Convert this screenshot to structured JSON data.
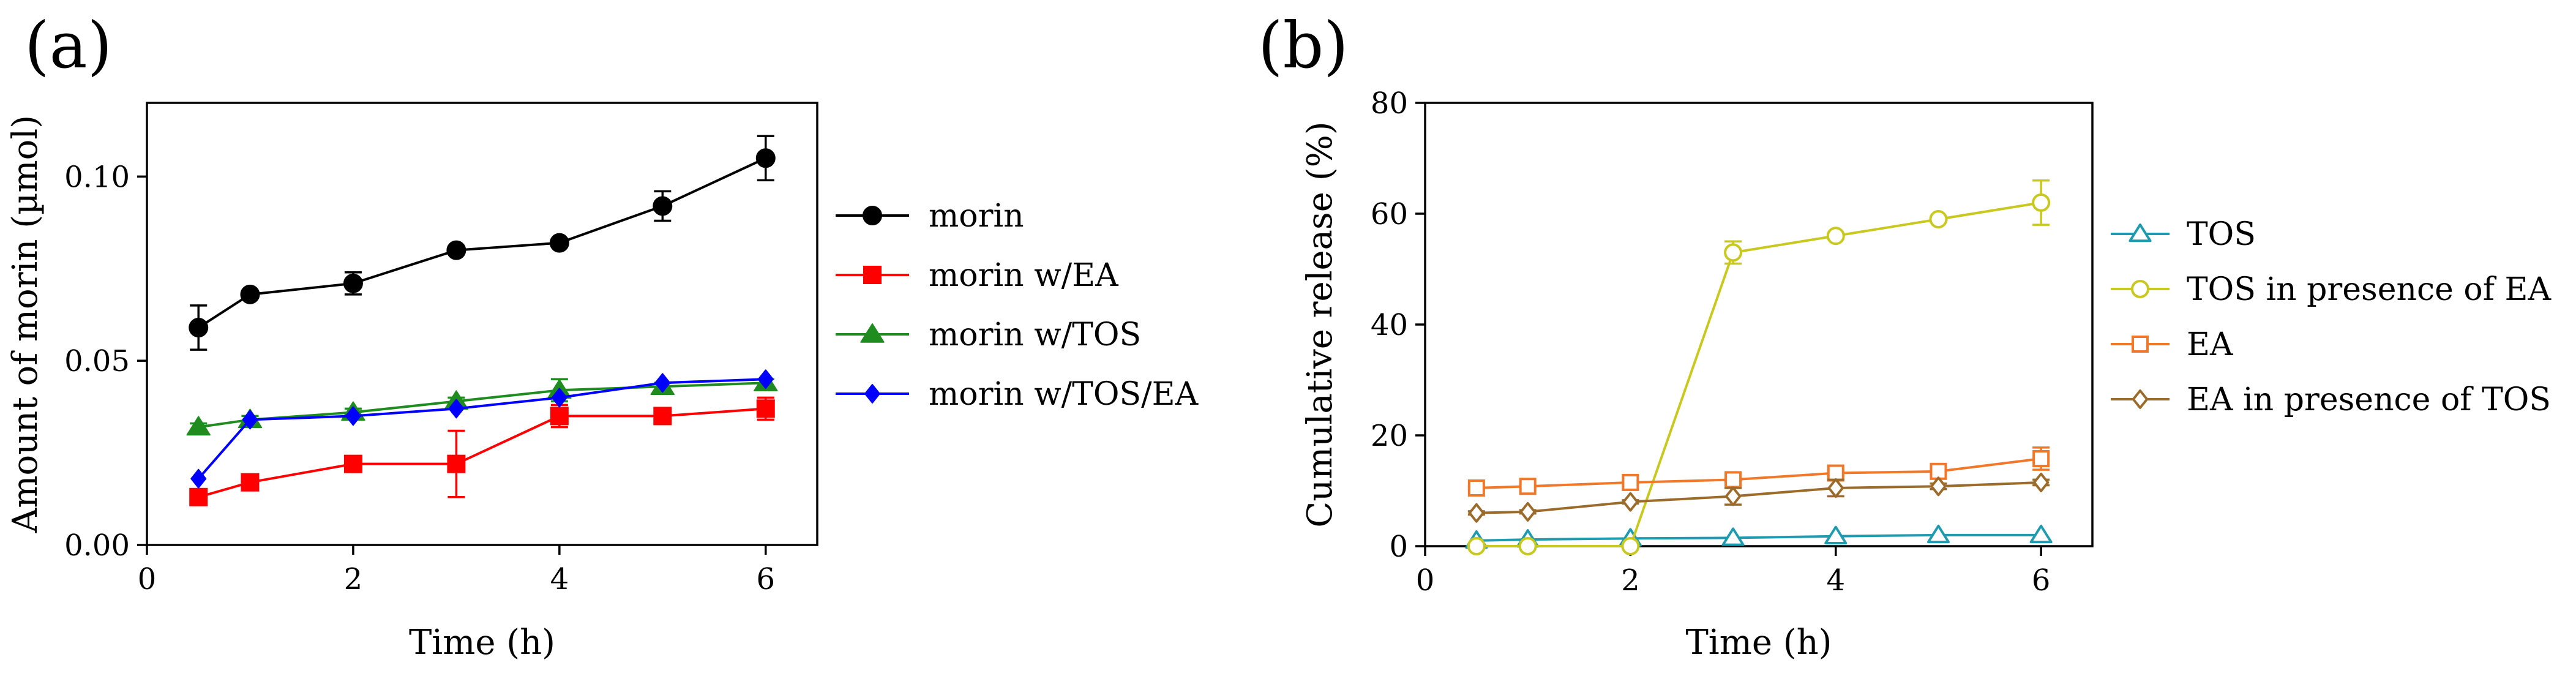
{
  "panel_labels": {
    "a": "(a)",
    "b": "(b)"
  },
  "chart_data": [
    {
      "type": "line",
      "panel": "(a)",
      "xlabel": "Time (h)",
      "ylabel": "Amount of morin (µmol)",
      "xlim": [
        0,
        6.5
      ],
      "ylim": [
        0,
        0.12
      ],
      "xticks": [
        0,
        2,
        4,
        6
      ],
      "yticks": [
        0.0,
        0.05,
        0.1
      ],
      "ytick_labels": [
        "0.00",
        "0.05",
        "0.10"
      ],
      "legend_position": "right",
      "series": [
        {
          "name": "morin",
          "color": "#000000",
          "marker": "circle-filled",
          "x": [
            0.5,
            1,
            2,
            3,
            4,
            5,
            6
          ],
          "y": [
            0.059,
            0.068,
            0.071,
            0.08,
            0.082,
            0.092,
            0.105
          ],
          "err": [
            0.006,
            0.001,
            0.003,
            0.001,
            0.001,
            0.004,
            0.006
          ]
        },
        {
          "name": "morin w/EA",
          "color": "#ff0000",
          "marker": "square-filled",
          "x": [
            0.5,
            1,
            2,
            3,
            4,
            5,
            6
          ],
          "y": [
            0.013,
            0.017,
            0.022,
            0.022,
            0.035,
            0.035,
            0.037
          ],
          "err": [
            0.001,
            0.002,
            0.002,
            0.009,
            0.003,
            0.001,
            0.003
          ]
        },
        {
          "name": "morin w/TOS",
          "color": "#1e8c1e",
          "marker": "triangle-filled",
          "x": [
            0.5,
            1,
            2,
            3,
            4,
            5,
            6
          ],
          "y": [
            0.032,
            0.034,
            0.036,
            0.039,
            0.042,
            0.043,
            0.044
          ],
          "err": [
            0.001,
            0.001,
            0.001,
            0.001,
            0.003,
            0.001,
            0.001
          ]
        },
        {
          "name": "morin w/TOS/EA",
          "color": "#0000ff",
          "marker": "diamond-filled",
          "x": [
            0.5,
            1,
            2,
            3,
            4,
            5,
            6
          ],
          "y": [
            0.018,
            0.034,
            0.035,
            0.037,
            0.04,
            0.044,
            0.045
          ],
          "err": [
            0,
            0,
            0,
            0,
            0,
            0,
            0
          ]
        }
      ]
    },
    {
      "type": "line",
      "panel": "(b)",
      "xlabel": "Time (h)",
      "ylabel": "Cumulative release (%)",
      "xlim": [
        0,
        6.5
      ],
      "ylim": [
        0,
        80
      ],
      "xticks": [
        0,
        2,
        4,
        6
      ],
      "yticks": [
        0,
        20,
        40,
        60,
        80
      ],
      "ytick_labels": [
        "0",
        "20",
        "40",
        "60",
        "80"
      ],
      "legend_position": "right",
      "series": [
        {
          "name": "TOS",
          "color": "#1f9bb0",
          "marker": "triangle-open",
          "x": [
            0.5,
            1,
            2,
            3,
            4,
            5,
            6
          ],
          "y": [
            1.0,
            1.2,
            1.4,
            1.5,
            1.8,
            2.0,
            2.0
          ],
          "err": [
            0,
            0,
            0,
            0,
            0,
            0,
            0
          ]
        },
        {
          "name": "TOS in presence of EA",
          "color": "#c8c81e",
          "marker": "circle-open",
          "x": [
            0.5,
            1,
            2,
            3,
            4,
            5,
            6
          ],
          "y": [
            0,
            0,
            0,
            53,
            56,
            59,
            62
          ],
          "err": [
            0,
            0,
            0,
            2,
            0.5,
            0.5,
            4
          ]
        },
        {
          "name": "EA",
          "color": "#f07828",
          "marker": "square-open",
          "x": [
            0.5,
            1,
            2,
            3,
            4,
            5,
            6
          ],
          "y": [
            10.5,
            10.8,
            11.5,
            12.0,
            13.2,
            13.5,
            15.8
          ],
          "err": [
            0.3,
            0.3,
            0.3,
            0.3,
            0.5,
            0.5,
            2
          ]
        },
        {
          "name": "EA in presence of TOS",
          "color": "#9b6b2b",
          "marker": "diamond-open",
          "x": [
            0.5,
            1,
            2,
            3,
            4,
            5,
            6
          ],
          "y": [
            6.0,
            6.2,
            8.0,
            9.0,
            10.5,
            10.8,
            11.5
          ],
          "err": [
            0.3,
            0.3,
            0.3,
            1.5,
            1.5,
            0.5,
            0.5
          ]
        }
      ]
    }
  ]
}
